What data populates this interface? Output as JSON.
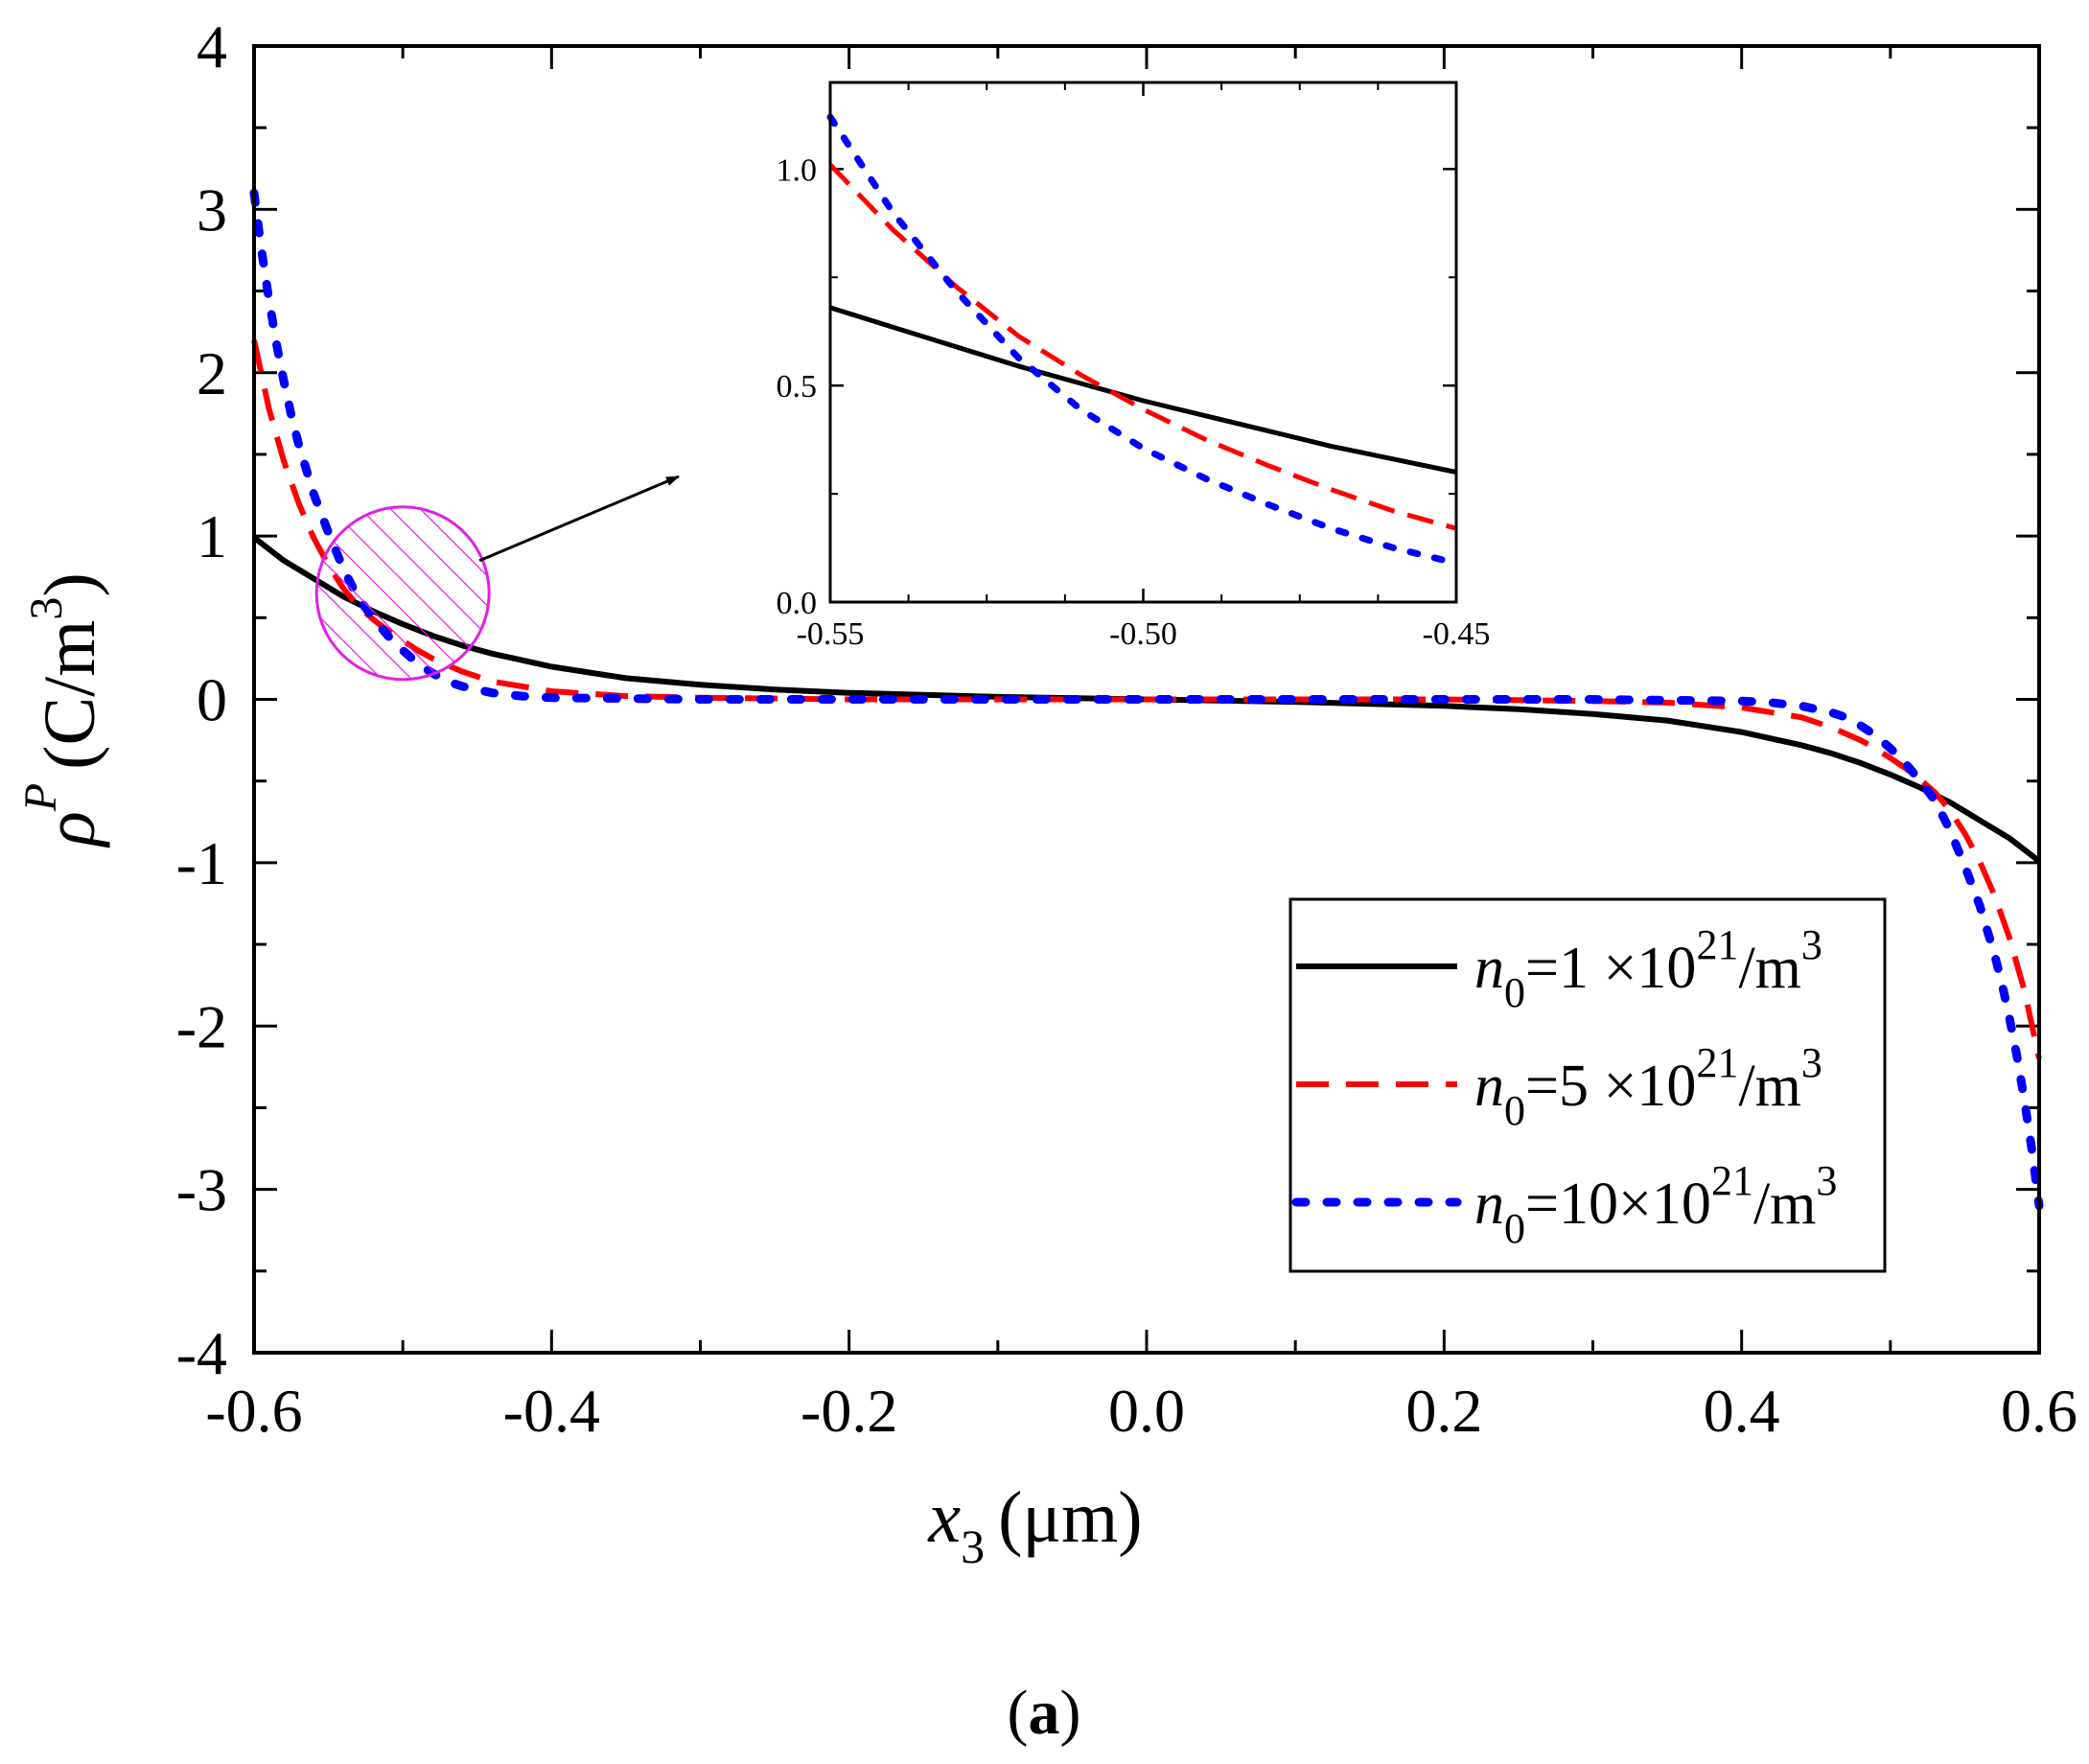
{
  "panel_label": {
    "open": "(",
    "letter": "a",
    "close": ")"
  },
  "colors": {
    "n1": "#000000",
    "n5": "#ff0000",
    "n10": "#0000ff",
    "highlight": "#e020e0",
    "axis": "#000000"
  },
  "chart_data": {
    "type": "line",
    "title": "",
    "xlabel": {
      "var": "x",
      "sub": "3",
      "unit": "(μm)"
    },
    "ylabel": {
      "var": "ρ",
      "sup": "P",
      "unit": "(C/m",
      "unit_sup": "3",
      "unit_close": ")"
    },
    "xlim": [
      -0.6,
      0.6
    ],
    "ylim": [
      -4,
      4
    ],
    "x_ticks": [
      -0.6,
      -0.4,
      -0.2,
      0.0,
      0.2,
      0.4,
      0.6
    ],
    "x_tick_labels": [
      "-0.6",
      "-0.4",
      "-0.2",
      "0.0",
      "0.2",
      "0.4",
      "0.6"
    ],
    "y_ticks": [
      -4,
      -3,
      -2,
      -1,
      0,
      1,
      2,
      3,
      4
    ],
    "y_tick_labels": [
      "-4",
      "-3",
      "-2",
      "-1",
      "0",
      "1",
      "2",
      "3",
      "4"
    ],
    "legend": {
      "position": "lower-right"
    },
    "series": [
      {
        "name": "n0=1 ×10^21/m^3",
        "label": {
          "var": "n",
          "sub": "0",
          "value": "=1  ×10",
          "exp": "21",
          "unit": "/m",
          "unit_exp": "3"
        },
        "style": "solid",
        "color": "#000000",
        "x": [
          -0.6,
          -0.58,
          -0.56,
          -0.54,
          -0.52,
          -0.5,
          -0.48,
          -0.46,
          -0.44,
          -0.42,
          -0.4,
          -0.35,
          -0.3,
          -0.25,
          -0.2,
          -0.1,
          0.0,
          0.1,
          0.2,
          0.25,
          0.3,
          0.35,
          0.4,
          0.42,
          0.44,
          0.46,
          0.48,
          0.5,
          0.52,
          0.54,
          0.56,
          0.58,
          0.6
        ],
        "y": [
          0.99,
          0.85,
          0.74,
          0.63,
          0.54,
          0.46,
          0.39,
          0.33,
          0.28,
          0.24,
          0.2,
          0.13,
          0.09,
          0.06,
          0.04,
          0.015,
          0.0,
          -0.015,
          -0.04,
          -0.06,
          -0.09,
          -0.13,
          -0.2,
          -0.24,
          -0.28,
          -0.33,
          -0.39,
          -0.46,
          -0.54,
          -0.63,
          -0.74,
          -0.85,
          -0.99
        ]
      },
      {
        "name": "n0=5 ×10^21/m^3",
        "label": {
          "var": "n",
          "sub": "0",
          "value": "=5  ×10",
          "exp": "21",
          "unit": "/m",
          "unit_exp": "3"
        },
        "style": "dashed",
        "color": "#ff0000",
        "x": [
          -0.6,
          -0.59,
          -0.58,
          -0.57,
          -0.56,
          -0.55,
          -0.54,
          -0.53,
          -0.52,
          -0.51,
          -0.5,
          -0.49,
          -0.48,
          -0.46,
          -0.44,
          -0.4,
          -0.35,
          -0.3,
          -0.2,
          0.0,
          0.2,
          0.3,
          0.35,
          0.4,
          0.44,
          0.46,
          0.48,
          0.49,
          0.5,
          0.51,
          0.52,
          0.53,
          0.54,
          0.55,
          0.56,
          0.57,
          0.58,
          0.59,
          0.6
        ],
        "y": [
          2.2,
          1.78,
          1.46,
          1.2,
          0.99,
          0.82,
          0.68,
          0.57,
          0.49,
          0.42,
          0.36,
          0.3,
          0.25,
          0.17,
          0.11,
          0.05,
          0.02,
          0.01,
          0.0,
          0.0,
          0.0,
          -0.01,
          -0.02,
          -0.05,
          -0.11,
          -0.17,
          -0.25,
          -0.3,
          -0.36,
          -0.42,
          -0.49,
          -0.57,
          -0.68,
          -0.82,
          -0.99,
          -1.2,
          -1.46,
          -1.78,
          -2.2
        ]
      },
      {
        "name": "n0=10×10^21/m^3",
        "label": {
          "var": "n",
          "sub": "0",
          "value": "=10×10",
          "exp": "21",
          "unit": "/m",
          "unit_exp": "3"
        },
        "style": "dotted",
        "color": "#0000ff",
        "x": [
          -0.6,
          -0.595,
          -0.59,
          -0.585,
          -0.58,
          -0.575,
          -0.57,
          -0.56,
          -0.55,
          -0.54,
          -0.53,
          -0.52,
          -0.51,
          -0.5,
          -0.49,
          -0.48,
          -0.47,
          -0.46,
          -0.44,
          -0.42,
          -0.4,
          -0.35,
          -0.3,
          -0.2,
          0.0,
          0.2,
          0.3,
          0.35,
          0.4,
          0.42,
          0.44,
          0.46,
          0.47,
          0.48,
          0.49,
          0.5,
          0.51,
          0.52,
          0.53,
          0.54,
          0.55,
          0.56,
          0.57,
          0.575,
          0.58,
          0.585,
          0.59,
          0.595,
          0.6
        ],
        "y": [
          3.1,
          2.75,
          2.45,
          2.18,
          1.95,
          1.74,
          1.56,
          1.26,
          1.02,
          0.8,
          0.62,
          0.5,
          0.39,
          0.3,
          0.22,
          0.16,
          0.11,
          0.08,
          0.04,
          0.02,
          0.01,
          0.005,
          0.0,
          0.0,
          0.0,
          0.0,
          0.0,
          -0.005,
          -0.01,
          -0.02,
          -0.04,
          -0.08,
          -0.11,
          -0.16,
          -0.22,
          -0.3,
          -0.39,
          -0.5,
          -0.62,
          -0.8,
          -1.02,
          -1.26,
          -1.56,
          -1.74,
          -1.95,
          -2.18,
          -2.45,
          -2.75,
          -3.1
        ]
      }
    ],
    "inset": {
      "type": "line",
      "xlim": [
        -0.55,
        -0.45
      ],
      "ylim": [
        0.0,
        1.2
      ],
      "x_ticks": [
        -0.55,
        -0.5,
        -0.45
      ],
      "x_tick_labels": [
        "-0.55",
        "-0.50",
        "-0.45"
      ],
      "y_ticks": [
        0.0,
        0.5,
        1.0
      ],
      "y_tick_labels": [
        "0.0",
        "0.5",
        "1.0"
      ],
      "series": [
        {
          "name": "n0=1 ×10^21/m^3",
          "style": "solid",
          "color": "#000000",
          "x": [
            -0.55,
            -0.54,
            -0.53,
            -0.52,
            -0.51,
            -0.5,
            -0.49,
            -0.48,
            -0.47,
            -0.46,
            -0.45
          ],
          "y": [
            0.68,
            0.635,
            0.59,
            0.545,
            0.505,
            0.465,
            0.43,
            0.395,
            0.36,
            0.33,
            0.3
          ]
        },
        {
          "name": "n0=5 ×10^21/m^3",
          "style": "dashed",
          "color": "#ff0000",
          "x": [
            -0.55,
            -0.54,
            -0.53,
            -0.52,
            -0.51,
            -0.5,
            -0.49,
            -0.48,
            -0.47,
            -0.46,
            -0.45
          ],
          "y": [
            1.01,
            0.86,
            0.73,
            0.615,
            0.525,
            0.445,
            0.375,
            0.315,
            0.26,
            0.21,
            0.17
          ]
        },
        {
          "name": "n0=10×10^21/m^3",
          "style": "dotted",
          "color": "#0000ff",
          "x": [
            -0.55,
            -0.54,
            -0.53,
            -0.52,
            -0.51,
            -0.5,
            -0.49,
            -0.48,
            -0.47,
            -0.46,
            -0.45
          ],
          "y": [
            1.12,
            0.9,
            0.72,
            0.565,
            0.445,
            0.355,
            0.285,
            0.225,
            0.17,
            0.125,
            0.09
          ]
        }
      ]
    },
    "annotation": {
      "type": "hatched-circle-with-arrow",
      "center": [
        -0.5,
        0.65
      ],
      "points_to": "inset"
    }
  }
}
